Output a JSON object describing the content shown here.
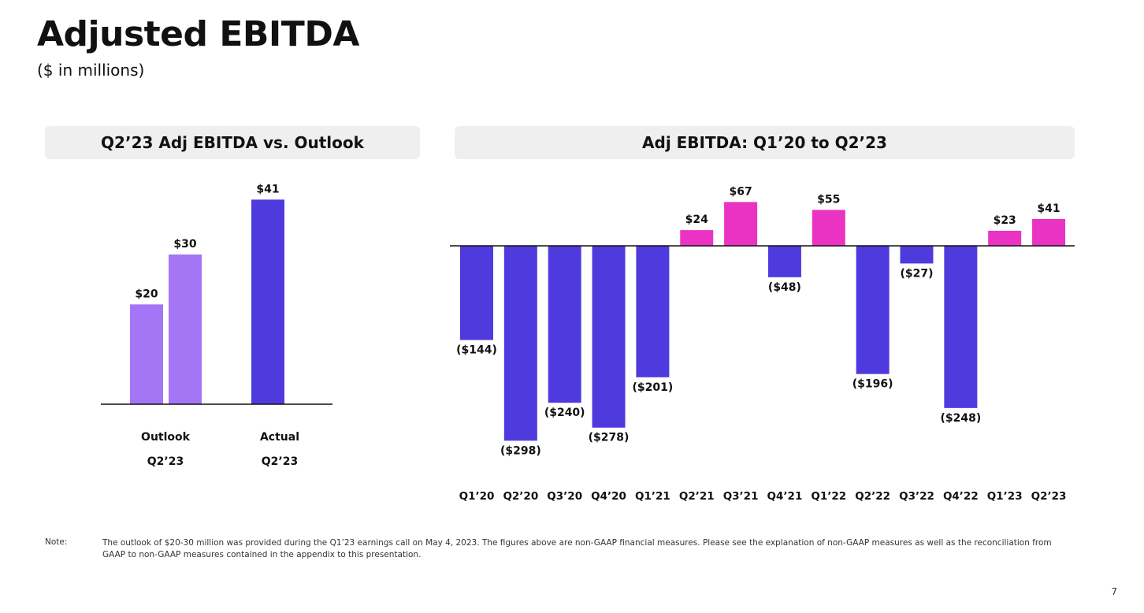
{
  "page": {
    "title": "Adjusted EBITDA",
    "subtitle": "($ in millions)",
    "note_label": "Note:",
    "note_text": "The outlook of $20-30 million was provided during the Q1’23 earnings call on May 4, 2023. The figures above are non-GAAP financial measures. Please see the explanation of non-GAAP measures as well as the reconciliation from GAAP to non-GAAP measures contained in the appendix to this presentation.",
    "page_number": "7"
  },
  "colors": {
    "outlook": "#a475f5",
    "actual": "#4f3bdd",
    "negative": "#4f3bdd",
    "positive": "#ea33c3",
    "axis": "#111111"
  },
  "chart_data": [
    {
      "type": "bar",
      "title": "Q2’23 Adj EBITDA vs. Outlook",
      "categories": [
        {
          "line1": "Outlook",
          "line2": "Q2’23"
        },
        {
          "line1": "Actual",
          "line2": "Q2’23"
        }
      ],
      "bars": [
        {
          "category": 0,
          "value": 20,
          "label": "$20",
          "kind": "outlook"
        },
        {
          "category": 0,
          "value": 30,
          "label": "$30",
          "kind": "outlook"
        },
        {
          "category": 1,
          "value": 41,
          "label": "$41",
          "kind": "actual"
        }
      ],
      "ylim": [
        0,
        45
      ],
      "grid": false,
      "legend": "none"
    },
    {
      "type": "bar",
      "title": "Adj EBITDA: Q1’20 to Q2’23",
      "categories": [
        "Q1’20",
        "Q2’20",
        "Q3’20",
        "Q4’20",
        "Q1’21",
        "Q2’21",
        "Q3’21",
        "Q4’21",
        "Q1’22",
        "Q2’22",
        "Q3’22",
        "Q4’22",
        "Q1’23",
        "Q2’23"
      ],
      "values": [
        -144,
        -298,
        -240,
        -278,
        -201,
        24,
        67,
        -48,
        55,
        -196,
        -27,
        -248,
        23,
        41
      ],
      "labels": [
        "($144)",
        "($298)",
        "($240)",
        "($278)",
        "($201)",
        "$24",
        "$67",
        "($48)",
        "$55",
        "($196)",
        "($27)",
        "($248)",
        "$23",
        "$41"
      ],
      "ylim": [
        -300,
        70
      ],
      "grid": false,
      "legend": "none"
    }
  ]
}
